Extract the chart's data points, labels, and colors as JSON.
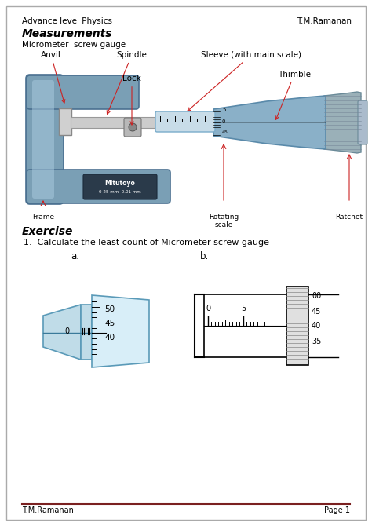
{
  "title_left": "Advance level Physics",
  "title_right": "T.M.Ramanan",
  "section_measurements": "Measurements",
  "subsection": "Micrometer  screw gauge",
  "exercise_label": "Exercise",
  "exercise_text": "1.  Calculate the least count of Micrometer screw gauge",
  "label_a": "a.",
  "label_b": "b.",
  "footer_left": "T.M.Ramanan",
  "footer_right": "Page 1",
  "border_color": "#aaaaaa",
  "footer_line_color": "#7a2020",
  "bg_color": "#ffffff",
  "frame_color": "#7a9fb5",
  "frame_dark": "#4a7090",
  "frame_light": "#aacce0",
  "thimble_color": "#8ab0c8",
  "thimble_dark": "#5a8aaa",
  "ratchet_color": "#909090",
  "sleeve_color": "#c8dce8",
  "spindle_color": "#cccccc",
  "anno_color": "#cc2222",
  "diag_a_body": "#c0dce8",
  "diag_a_thimble": "#d8eef8",
  "diag_b_hatch": "#bbbbbb"
}
